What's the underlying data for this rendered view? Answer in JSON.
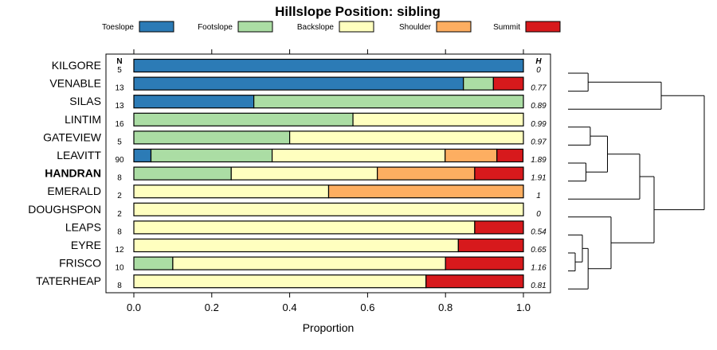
{
  "chart_data": {
    "type": "bar",
    "orientation": "horizontal",
    "stacked": true,
    "title": "Hillslope Position: sibling",
    "xlabel": "Proportion",
    "ylabel": "",
    "xlim": [
      0,
      1
    ],
    "xticks": [
      "0.0",
      "0.2",
      "0.4",
      "0.6",
      "0.8",
      "1.0"
    ],
    "n_header": "N",
    "h_header": "H",
    "legend_position": "top",
    "categories": [
      "KILGORE",
      "VENABLE",
      "SILAS",
      "LINTIM",
      "GATEVIEW",
      "LEAVITT",
      "HANDRAN",
      "EMERALD",
      "DOUGHSPON",
      "LEAPS",
      "EYRE",
      "FRISCO",
      "TATERHEAP"
    ],
    "highlighted": "HANDRAN",
    "n": [
      "5",
      "13",
      "13",
      "16",
      "5",
      "90",
      "8",
      "2",
      "2",
      "8",
      "12",
      "10",
      "8"
    ],
    "h": [
      "0",
      "0.77",
      "0.89",
      "0.99",
      "0.97",
      "1.89",
      "1.91",
      "1",
      "0",
      "0.54",
      "0.65",
      "1.16",
      "0.81"
    ],
    "series": [
      {
        "name": "Toeslope",
        "color": "#2c7bb6",
        "values": [
          1.0,
          0.846,
          0.308,
          0,
          0,
          0.044,
          0,
          0,
          0,
          0,
          0,
          0,
          0
        ]
      },
      {
        "name": "Footslope",
        "color": "#abdda4",
        "values": [
          0,
          0.077,
          0.692,
          0.5625,
          0.4,
          0.311,
          0.25,
          0,
          0,
          0,
          0,
          0.1,
          0
        ]
      },
      {
        "name": "Backslope",
        "color": "#ffffbf",
        "values": [
          0,
          0,
          0,
          0.4375,
          0.6,
          0.444,
          0.375,
          0.5,
          1.0,
          0.875,
          0.833,
          0.7,
          0.75
        ]
      },
      {
        "name": "Shoulder",
        "color": "#fdae61",
        "values": [
          0,
          0,
          0,
          0,
          0,
          0.133,
          0.25,
          0.5,
          0,
          0,
          0,
          0,
          0
        ]
      },
      {
        "name": "Summit",
        "color": "#d7191c",
        "values": [
          0,
          0.077,
          0,
          0,
          0,
          0.067,
          0.125,
          0,
          0,
          0.125,
          0.167,
          0.2,
          0.25
        ]
      }
    ],
    "dendrogram": {
      "leaf_order": [
        "KILGORE",
        "VENABLE",
        "SILAS",
        "LINTIM",
        "GATEVIEW",
        "LEAVITT",
        "HANDRAN",
        "EMERALD",
        "DOUGHSPON",
        "LEAPS",
        "EYRE",
        "FRISCO",
        "TATERHEAP"
      ],
      "merges": [
        {
          "a": "KILGORE",
          "b": "VENABLE",
          "height": 0.28
        },
        {
          "a": "KILGORE+VENABLE",
          "b": "SILAS",
          "height": 1.3
        },
        {
          "a": "LINTIM",
          "b": "GATEVIEW",
          "height": 0.31
        },
        {
          "a": "LEAVITT",
          "b": "HANDRAN",
          "height": 0.25
        },
        {
          "a": "LINTIM+GATEVIEW",
          "b": "LEAVITT+HANDRAN",
          "height": 0.55
        },
        {
          "a": "LINTIM+GATEVIEW+LEAVITT+HANDRAN",
          "b": "EMERALD",
          "height": 1.0
        },
        {
          "a": "EYRE",
          "b": "FRISCO",
          "height": 0.1
        },
        {
          "a": "LEAPS",
          "b": "EYRE+FRISCO",
          "height": 0.2
        },
        {
          "a": "LEAPS+EYRE+FRISCO",
          "b": "TATERHEAP",
          "height": 0.28
        },
        {
          "a": "DOUGHSPON",
          "b": "LEAPS+EYRE+FRISCO+TATERHEAP",
          "height": 0.6
        },
        {
          "a": "LINTIM+GATEVIEW+LEAVITT+HANDRAN+EMERALD",
          "b": "DOUGHSPON+LEAPS+EYRE+FRISCO+TATERHEAP",
          "height": 1.2
        },
        {
          "a": "KILGORE+VENABLE+SILAS",
          "b": "LINTIM+GATEVIEW+LEAVITT+HANDRAN+EMERALD+DOUGHSPON+LEAPS+EYRE+FRISCO+TATERHEAP",
          "height": 1.9
        }
      ],
      "max_height": 2.0
    }
  }
}
